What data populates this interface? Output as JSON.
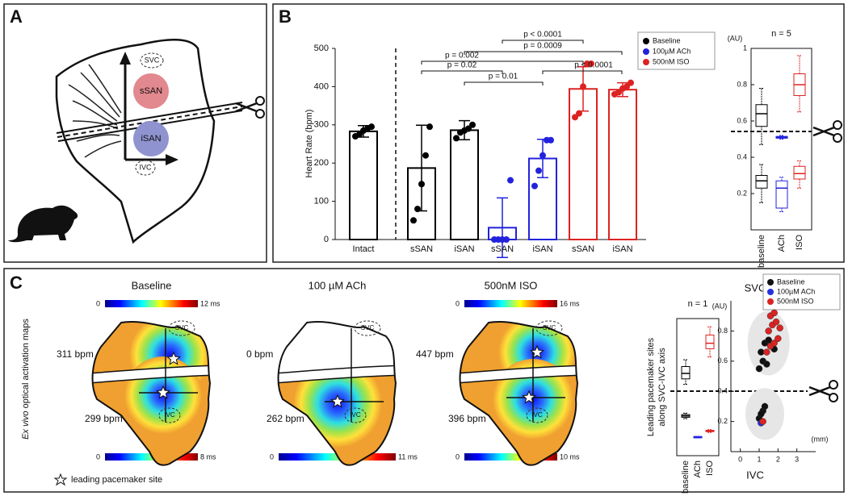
{
  "panels": {
    "a": {
      "letter": "A",
      "svc": "SVC",
      "ivc": "IVC",
      "ssan": "sSAN",
      "isan": "iSAN"
    },
    "b": {
      "letter": "B"
    },
    "c": {
      "letter": "C",
      "side_label_italic": "Ex vivo",
      "side_label": " optical activation maps",
      "legend_note": "leading pacemaker site",
      "maps": [
        {
          "title": "Baseline",
          "scale_top": [
            "0",
            "12 ms"
          ],
          "scale_bottom": [
            "0",
            "8 ms"
          ],
          "rate_top": "311 bpm",
          "rate_bottom": "299 bpm",
          "svc": "SVC",
          "ivc": "IVC"
        },
        {
          "title": "100 µM ACh",
          "scale_top": [],
          "scale_bottom": [
            "0",
            "11 ms"
          ],
          "rate_top": "0 bpm",
          "rate_bottom": "262 bpm",
          "svc": "SVC",
          "ivc": "IVC"
        },
        {
          "title": "500nM ISO",
          "scale_top": [
            "0",
            "16 ms"
          ],
          "scale_bottom": [
            "0",
            "10 ms"
          ],
          "rate_top": "447 bpm",
          "rate_bottom": "396 bpm",
          "svc": "SVC",
          "ivc": "IVC"
        }
      ]
    }
  },
  "chart_data": [
    {
      "type": "bar",
      "ylabel": "Heart Rate (bpm)",
      "categories": [
        "Intact",
        "sSAN",
        "iSAN",
        "sSAN",
        "iSAN",
        "sSAN",
        "iSAN"
      ],
      "colors": [
        "#000000",
        "#000000",
        "#000000",
        "#2222dd",
        "#2222dd",
        "#dd2222",
        "#dd2222"
      ],
      "values": [
        283,
        187,
        286,
        31,
        212,
        394,
        392
      ],
      "errors": [
        15,
        112,
        25,
        78,
        50,
        58,
        18
      ],
      "points": [
        [
          270,
          275,
          285,
          290,
          295
        ],
        [
          50,
          80,
          145,
          220,
          295
        ],
        [
          265,
          280,
          285,
          290,
          300
        ],
        [
          0,
          0,
          0,
          0,
          155
        ],
        [
          140,
          180,
          220,
          260,
          260
        ],
        [
          320,
          330,
          400,
          460,
          460
        ],
        [
          380,
          385,
          395,
          400,
          410
        ]
      ],
      "ylim": [
        0,
        500
      ],
      "yticks": [
        0,
        100,
        200,
        300,
        400,
        500
      ],
      "annotations": [
        "p < 0.0001",
        "p = 0.0009",
        "p = 0.002",
        "p < 0.0001",
        "p = 0.02",
        "p = 0.01"
      ],
      "legend": [
        {
          "name": "Baseline",
          "color": "#000000"
        },
        {
          "name": "100µM ACh",
          "color": "#2222dd"
        },
        {
          "name": "500nM ISO",
          "color": "#dd2222"
        }
      ]
    },
    {
      "type": "box",
      "title": "n = 5",
      "ylabel": "(AU)",
      "ylim": [
        0,
        1
      ],
      "yticks": [
        0.2,
        0.4,
        0.6,
        0.8,
        1
      ],
      "categories": [
        "baseline",
        "ACh",
        "ISO"
      ],
      "colors": [
        "#000000",
        "#2222dd",
        "#dd2222"
      ],
      "upper": [
        [
          0.47,
          0.57,
          0.64,
          0.69,
          0.78
        ],
        [
          0.5,
          0.505,
          0.51,
          0.515,
          0.52
        ],
        [
          0.65,
          0.74,
          0.8,
          0.86,
          0.96
        ]
      ],
      "lower": [
        [
          0.15,
          0.23,
          0.27,
          0.3,
          0.36
        ],
        [
          0.1,
          0.12,
          0.23,
          0.27,
          0.29
        ],
        [
          0.23,
          0.28,
          0.31,
          0.35,
          0.38
        ]
      ]
    },
    {
      "type": "box",
      "title": "n = 1",
      "ylabel": [
        "Leading pacemaker sites",
        "along SVC-IVC axis"
      ],
      "ylim": [
        0,
        1
      ],
      "categories": [
        "baseline",
        "ACh",
        "ISO"
      ],
      "colors": [
        "#000000",
        "#2222dd",
        "#dd2222"
      ],
      "upper": [
        [
          0.52,
          0.56,
          0.6,
          0.65,
          0.7
        ],
        null,
        [
          0.72,
          0.78,
          0.82,
          0.88,
          0.94
        ]
      ],
      "lower": [
        [
          0.27,
          0.28,
          0.29,
          0.3,
          0.31
        ],
        [
          0.13,
          0.13,
          0.135,
          0.14,
          0.14
        ],
        [
          0.17,
          0.175,
          0.18,
          0.185,
          0.19
        ]
      ]
    },
    {
      "type": "scatter",
      "ylabel": "(AU)",
      "xlabel": "(mm)",
      "top_label": "SVC",
      "bottom_label": "IVC",
      "xlim": [
        -0.5,
        4
      ],
      "xticks": [
        0,
        1,
        2,
        3
      ],
      "ylim": [
        0,
        1
      ],
      "yticks": [
        0.2,
        0.4,
        0.6,
        0.8
      ],
      "series": [
        {
          "name": "Baseline",
          "color": "#111111",
          "x": [
            1.0,
            1.2,
            1.4,
            1.1,
            1.6,
            1.3,
            1.8,
            1.5,
            1.0,
            1.2,
            1.3,
            1.1
          ],
          "y": [
            0.55,
            0.6,
            0.58,
            0.66,
            0.7,
            0.72,
            0.68,
            0.74,
            0.22,
            0.27,
            0.3,
            0.25
          ]
        },
        {
          "name": "100µM ACh",
          "color": "#2233dd",
          "x": [
            1.1
          ],
          "y": [
            0.19
          ]
        },
        {
          "name": "500nM ISO",
          "color": "#dd2222",
          "x": [
            1.4,
            1.6,
            1.8,
            2.0,
            1.5,
            1.7,
            1.9,
            2.1,
            1.6,
            1.8,
            1.2
          ],
          "y": [
            0.66,
            0.7,
            0.72,
            0.75,
            0.8,
            0.84,
            0.86,
            0.82,
            0.9,
            0.92,
            0.2
          ]
        }
      ]
    }
  ]
}
